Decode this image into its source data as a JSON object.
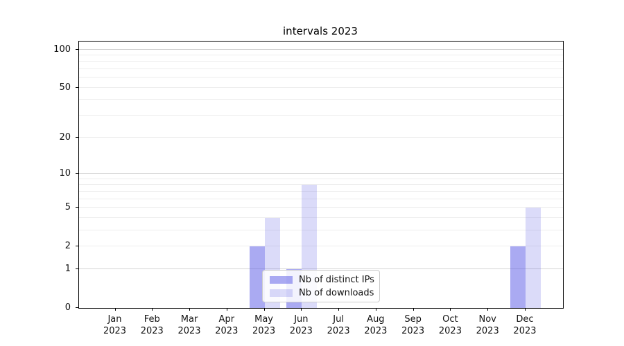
{
  "chart_data": {
    "type": "bar",
    "title": "intervals 2023",
    "categories": [
      "Jan",
      "Feb",
      "Mar",
      "Apr",
      "May",
      "Jun",
      "Jul",
      "Aug",
      "Sep",
      "Oct",
      "Nov",
      "Dec"
    ],
    "category_year": "2023",
    "series": [
      {
        "name": "Nb of distinct IPs",
        "color": "rgba(86,86,229,0.5)",
        "values": [
          0,
          0,
          0,
          0,
          2,
          1,
          0,
          0,
          0,
          0,
          0,
          2
        ]
      },
      {
        "name": "Nb of downloads",
        "color": "rgba(86,86,229,0.21)",
        "values": [
          0,
          0,
          0,
          0,
          4,
          8,
          0,
          0,
          0,
          0,
          0,
          5
        ]
      }
    ],
    "xlabel": "",
    "ylabel": "",
    "y_scale": "log1p",
    "ylim": [
      0,
      100
    ],
    "y_ticks": [
      0,
      1,
      2,
      5,
      10,
      20,
      50,
      100
    ],
    "gridlines_major": [
      1,
      10,
      100
    ],
    "gridlines_minor": [
      2,
      3,
      4,
      5,
      6,
      7,
      8,
      9,
      20,
      30,
      40,
      50,
      60,
      70,
      80,
      90
    ],
    "grid": true,
    "legend_position": "lower center-left inside plot"
  },
  "colors": {
    "bar_distinct_ips": "rgba(86,86,229,0.5)",
    "bar_downloads": "rgba(86,86,229,0.21)",
    "grid_major": "#d3d3d3",
    "grid_minor": "#ededed",
    "axis": "#000000",
    "legend_border": "#cccccc"
  }
}
